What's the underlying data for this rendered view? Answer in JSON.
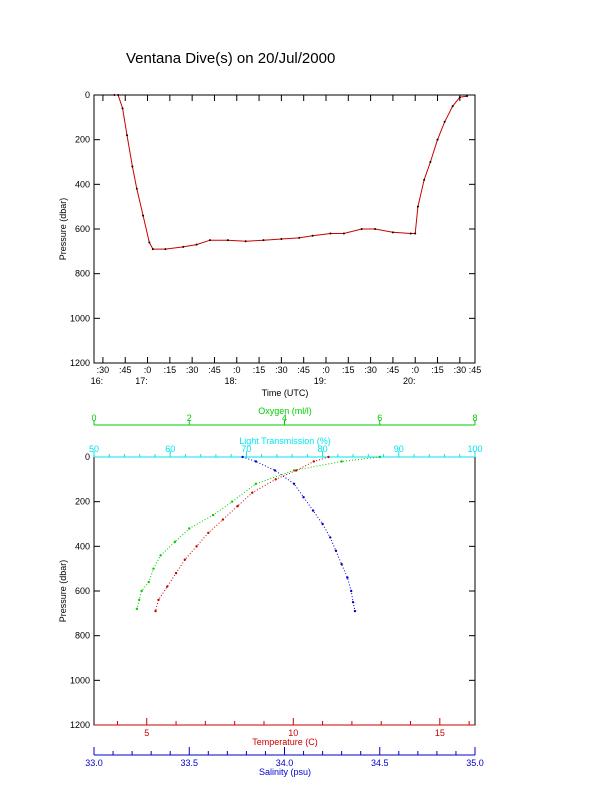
{
  "page": {
    "title": "Ventana Dive(s) on 20/Jul/2000"
  },
  "colors": {
    "axis": "#000000",
    "line": "#cc0000",
    "oxygen": "#00cc00",
    "transmission": "#00e5ee",
    "temperature": "#cc0000",
    "salinity": "#0000cc"
  },
  "chart_data": [
    {
      "type": "line",
      "name": "time-pressure",
      "xlabel": "Time (UTC)",
      "ylabel": "Pressure (dbar)",
      "xlim": [
        16.4,
        20.67
      ],
      "ylim": [
        1200,
        0
      ],
      "x_ticks": [
        {
          "v": 16.5,
          "label": ":30",
          "hour": "16:"
        },
        {
          "v": 16.75,
          "label": ":45",
          "hour": ""
        },
        {
          "v": 17.0,
          "label": ":0",
          "hour": "17:"
        },
        {
          "v": 17.25,
          "label": ":15",
          "hour": ""
        },
        {
          "v": 17.5,
          "label": ":30",
          "hour": ""
        },
        {
          "v": 17.75,
          "label": ":45",
          "hour": ""
        },
        {
          "v": 18.0,
          "label": ":0",
          "hour": "18:"
        },
        {
          "v": 18.25,
          "label": ":15",
          "hour": ""
        },
        {
          "v": 18.5,
          "label": ":30",
          "hour": ""
        },
        {
          "v": 18.75,
          "label": ":45",
          "hour": ""
        },
        {
          "v": 19.0,
          "label": ":0",
          "hour": "19:"
        },
        {
          "v": 19.25,
          "label": ":15",
          "hour": ""
        },
        {
          "v": 19.5,
          "label": ":30",
          "hour": ""
        },
        {
          "v": 19.75,
          "label": ":45",
          "hour": ""
        },
        {
          "v": 20.0,
          "label": ":0",
          "hour": "20:"
        },
        {
          "v": 20.25,
          "label": ":15",
          "hour": ""
        },
        {
          "v": 20.5,
          "label": ":30",
          "hour": ""
        },
        {
          "v": 20.67,
          "label": ":45",
          "hour": ""
        }
      ],
      "y_ticks": [
        "0",
        "200",
        "400",
        "600",
        "800",
        "1000",
        "1200"
      ],
      "x": [
        16.63,
        16.67,
        16.72,
        16.77,
        16.83,
        16.88,
        16.95,
        17.02,
        17.06,
        17.2,
        17.4,
        17.55,
        17.7,
        17.9,
        18.1,
        18.3,
        18.5,
        18.7,
        18.85,
        19.05,
        19.2,
        19.4,
        19.55,
        19.75,
        19.95,
        20.0,
        20.03,
        20.1,
        20.17,
        20.25,
        20.33,
        20.42,
        20.5,
        20.58
      ],
      "y": [
        0,
        0,
        60,
        180,
        320,
        420,
        540,
        660,
        690,
        690,
        680,
        670,
        650,
        650,
        655,
        650,
        645,
        640,
        630,
        620,
        620,
        600,
        600,
        615,
        620,
        620,
        500,
        380,
        300,
        200,
        120,
        50,
        10,
        5
      ]
    },
    {
      "type": "scatter",
      "name": "ctd-profiles",
      "ylabel": "Pressure (dbar)",
      "ylim": [
        1200,
        0
      ],
      "y_ticks": [
        "0",
        "200",
        "400",
        "600",
        "800",
        "1000",
        "1200"
      ],
      "axes": {
        "oxygen": {
          "label": "Oxygen (ml/l)",
          "range": [
            0,
            8
          ],
          "ticks": [
            "0",
            "2",
            "4",
            "6",
            "8"
          ]
        },
        "transmission": {
          "label": "Light Transmission (%)",
          "range": [
            50,
            100
          ],
          "ticks": [
            "50",
            "60",
            "70",
            "80",
            "90",
            "100"
          ]
        },
        "temperature": {
          "label": "Temperature (C)",
          "range": [
            3.2,
            16.2
          ],
          "ticks": [
            "5",
            "10",
            "15"
          ]
        },
        "salinity": {
          "label": "Salinity (psu)",
          "range": [
            33.0,
            35.0
          ],
          "ticks": [
            "33.0",
            "33.5",
            "34.0",
            "34.5",
            "35.0"
          ]
        }
      },
      "series": [
        {
          "key": "oxygen",
          "p": [
            0,
            20,
            60,
            120,
            200,
            260,
            320,
            380,
            440,
            500,
            560,
            600,
            640,
            680
          ],
          "v": [
            6.0,
            5.2,
            4.2,
            3.4,
            2.9,
            2.5,
            2.0,
            1.7,
            1.4,
            1.25,
            1.15,
            1.0,
            0.95,
            0.9
          ]
        },
        {
          "key": "temperature",
          "p": [
            0,
            20,
            60,
            100,
            160,
            220,
            280,
            340,
            400,
            460,
            520,
            580,
            640,
            690
          ],
          "v": [
            11.2,
            10.7,
            10.1,
            9.4,
            8.6,
            8.1,
            7.6,
            7.1,
            6.7,
            6.3,
            6.0,
            5.7,
            5.4,
            5.3
          ]
        },
        {
          "key": "salinity",
          "p": [
            0,
            20,
            60,
            120,
            180,
            240,
            300,
            360,
            420,
            480,
            540,
            600,
            650,
            690
          ],
          "v": [
            33.78,
            33.85,
            33.95,
            34.05,
            34.1,
            34.15,
            34.2,
            34.24,
            34.27,
            34.3,
            34.33,
            34.35,
            34.36,
            34.37
          ]
        }
      ]
    }
  ]
}
